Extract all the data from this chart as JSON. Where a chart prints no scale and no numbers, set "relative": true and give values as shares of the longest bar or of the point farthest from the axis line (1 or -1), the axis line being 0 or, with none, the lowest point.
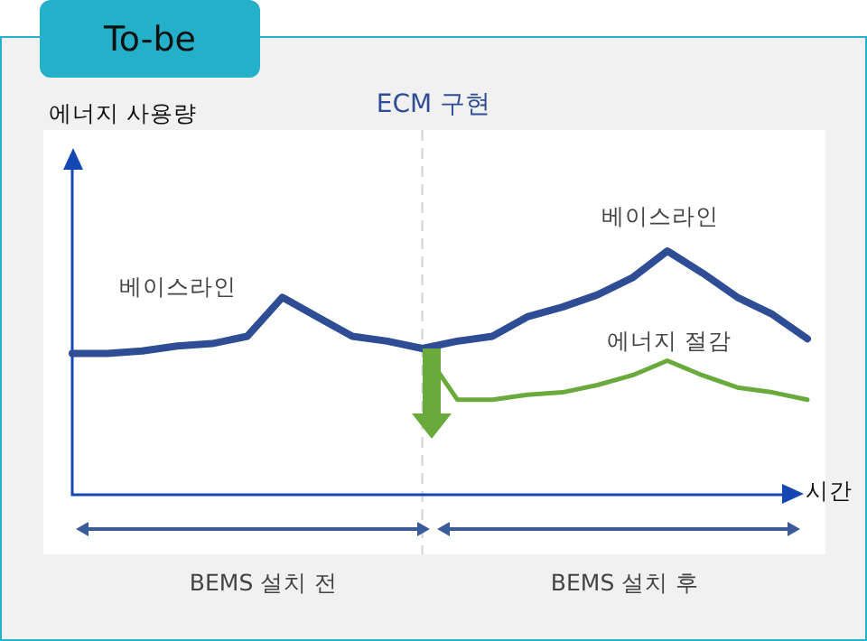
{
  "chart_data": {
    "type": "line",
    "relative": true,
    "title": "To-be",
    "xlabel": "시간",
    "categories": [
      null,
      null,
      null,
      null,
      null,
      null,
      null,
      null,
      null,
      null,
      null,
      null,
      null,
      null,
      null,
      null,
      null,
      null,
      null,
      null,
      null,
      null
    ],
    "series": [
      {
        "name": "베이스라인",
        "color": "#2e4d94",
        "values": [
          0.58,
          0.58,
          0.59,
          0.61,
          0.62,
          0.65,
          0.81,
          0.73,
          0.65,
          0.63,
          0.6,
          0.63,
          0.65,
          0.73,
          0.77,
          0.82,
          0.89,
          1.0,
          0.91,
          0.81,
          0.74,
          0.64
        ]
      },
      {
        "name": "에너지 절감",
        "color": "#6aaa3c",
        "values": [
          null,
          null,
          null,
          null,
          null,
          null,
          null,
          null,
          null,
          null,
          0.6,
          0.39,
          0.39,
          0.41,
          0.42,
          0.45,
          0.49,
          0.55,
          0.49,
          0.44,
          0.42,
          0.39
        ]
      }
    ],
    "annotations": [
      "베이스라인",
      "BEMS 설치 전",
      "BEMS 설치 후",
      "ECM 구현",
      "에너지 사용량"
    ],
    "legend": false,
    "marker": "none",
    "line_style": "solid"
  }
}
